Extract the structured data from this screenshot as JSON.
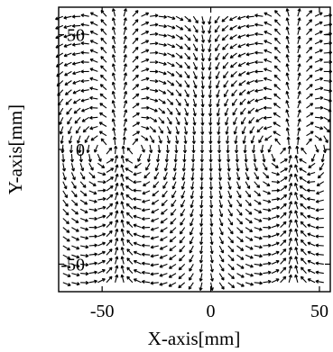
{
  "chart_data": {
    "type": "quiver",
    "title": "",
    "xlabel": "X-axis[mm]",
    "ylabel": "Y-axis[mm]",
    "xlim": [
      -70,
      55
    ],
    "ylim": [
      -62,
      62
    ],
    "xticks": [
      -50,
      0,
      50
    ],
    "yticks": [
      50,
      0,
      -50
    ],
    "xtick_labels": [
      "-50",
      "0",
      "50"
    ],
    "ytick_labels": [
      "50",
      "0",
      "-50"
    ],
    "grid": false,
    "legend": "none",
    "field": {
      "x_range": [
        -68,
        53
      ],
      "y_range": [
        -58,
        58
      ],
      "step_mm": 4,
      "vortex_centers": [
        [
          -42,
          0
        ],
        [
          38,
          0
        ]
      ],
      "description_hidden": true
    }
  }
}
